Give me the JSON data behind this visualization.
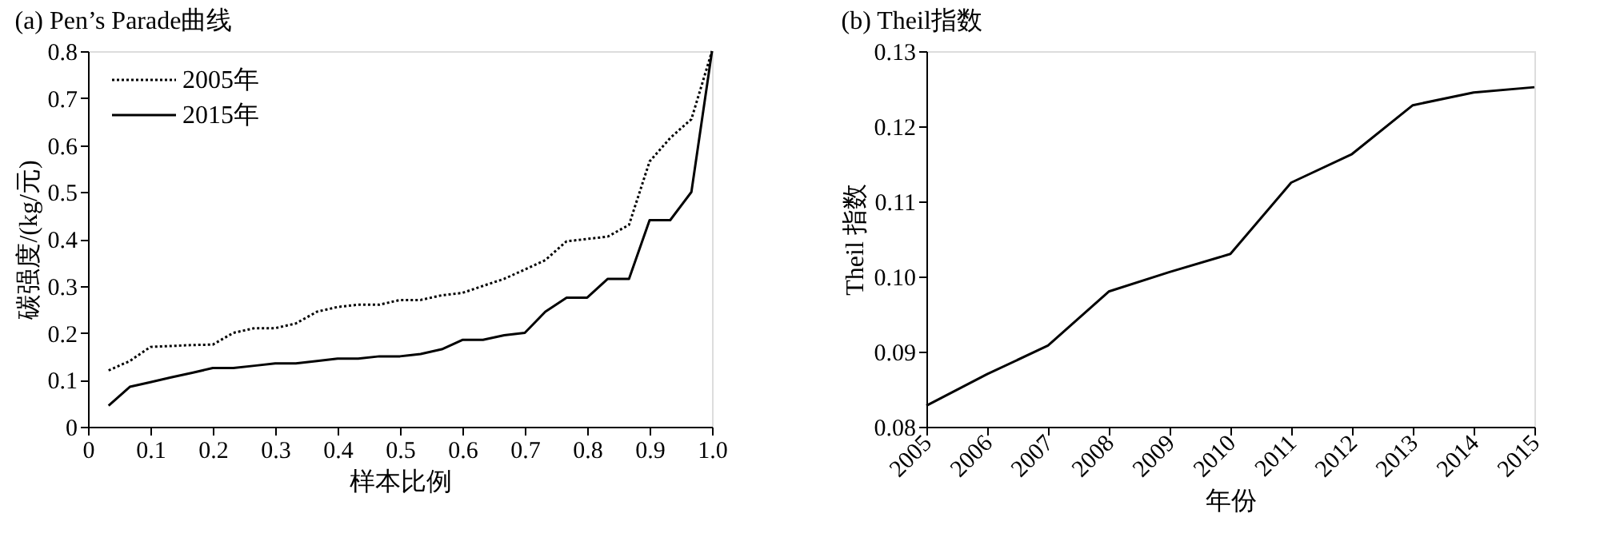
{
  "chart_data": [
    {
      "type": "line",
      "title": "(a) Pen’s Parade曲线",
      "xlabel": "样本比例",
      "ylabel": "碳强度/(kg/元)",
      "x": [
        0.033,
        0.067,
        0.1,
        0.133,
        0.167,
        0.2,
        0.233,
        0.267,
        0.3,
        0.333,
        0.367,
        0.4,
        0.433,
        0.467,
        0.5,
        0.533,
        0.567,
        0.6,
        0.633,
        0.667,
        0.7,
        0.733,
        0.767,
        0.8,
        0.833,
        0.867,
        0.9,
        0.933,
        0.967,
        1.0
      ],
      "series": [
        {
          "name": "2005年",
          "color": "#000000",
          "line_style": "dotted",
          "values": [
            0.12,
            0.14,
            0.17,
            0.172,
            0.174,
            0.175,
            0.2,
            0.21,
            0.21,
            0.22,
            0.245,
            0.255,
            0.26,
            0.26,
            0.27,
            0.27,
            0.28,
            0.285,
            0.3,
            0.315,
            0.335,
            0.355,
            0.395,
            0.4,
            0.405,
            0.43,
            0.565,
            0.615,
            0.655,
            0.8
          ]
        },
        {
          "name": "2015年",
          "color": "#000000",
          "line_style": "solid",
          "values": [
            0.045,
            0.085,
            0.095,
            0.105,
            0.115,
            0.125,
            0.125,
            0.13,
            0.135,
            0.135,
            0.14,
            0.145,
            0.145,
            0.15,
            0.15,
            0.155,
            0.165,
            0.185,
            0.185,
            0.195,
            0.2,
            0.245,
            0.275,
            0.275,
            0.315,
            0.315,
            0.44,
            0.44,
            0.5,
            0.8
          ]
        }
      ],
      "xlim": [
        0,
        1.0
      ],
      "xticks": [
        0,
        0.1,
        0.2,
        0.3,
        0.4,
        0.5,
        0.6,
        0.7,
        0.8,
        0.9,
        {
          "value": 1.0,
          "label": "1.0"
        }
      ],
      "ylim": [
        0,
        0.8
      ],
      "yticks": [
        0,
        0.1,
        0.2,
        0.3,
        0.4,
        0.5,
        0.6,
        0.7,
        0.8
      ],
      "legend": "top left",
      "grid": false
    },
    {
      "type": "line",
      "title": "(b) Theil指数",
      "xlabel": "年份",
      "ylabel": "Theil 指数",
      "x": [
        2005,
        2006,
        2007,
        2008,
        2009,
        2010,
        2011,
        2012,
        2013,
        2014,
        2015
      ],
      "series": [
        {
          "color": "#000000",
          "values": [
            0.0828,
            0.087,
            0.0908,
            0.098,
            0.1006,
            0.103,
            0.1125,
            0.1163,
            0.1228,
            0.1245,
            0.1252
          ]
        }
      ],
      "xlim": [
        2005,
        2015
      ],
      "xticks": [
        2005,
        2006,
        2007,
        2008,
        2009,
        2010,
        2011,
        2012,
        2013,
        2014,
        2015
      ],
      "ylim": [
        0.08,
        0.13
      ],
      "yticks": [
        {
          "value": 0.08,
          "label": "0.08"
        },
        {
          "value": 0.09,
          "label": "0.09"
        },
        {
          "value": 0.1,
          "label": "0.10"
        },
        {
          "value": 0.11,
          "label": "0.11"
        },
        {
          "value": 0.12,
          "label": "0.12"
        },
        {
          "value": 0.13,
          "label": "0.13"
        }
      ],
      "grid": false
    }
  ]
}
